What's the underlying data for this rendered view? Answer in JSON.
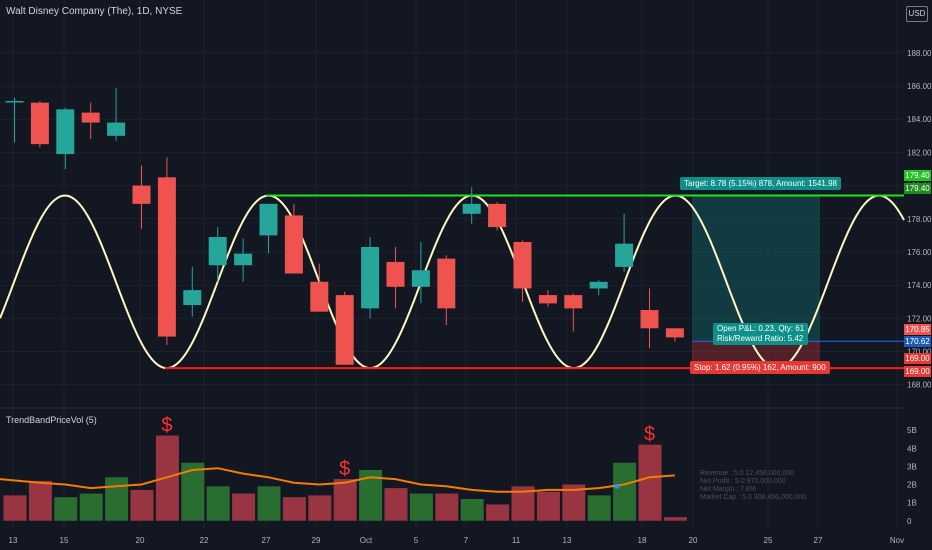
{
  "header": {
    "symbol_title": "Walt Disney Company (The), 1D, NYSE",
    "currency": "USD"
  },
  "indicator": {
    "title": "TrendBandPriceVol (5)",
    "stats": [
      "Revenue : 5.0 12,456,000,000",
      "Net Profit : 5.0 970,000,000",
      "Net Margin : 7.8%",
      "Market Cap : 5.0 308,456,000,000"
    ]
  },
  "position": {
    "target_label": "Target: 8.78 (5.15%) 878, Amount: 1541.98",
    "stop_label": "Stop: 1.62 (0.95%) 162, Amount: 900",
    "pnl_line1": "Open P&L: 0.23, Qty: 61",
    "pnl_line2": "Risk/Reward Ratio: 5.42",
    "target_price": 179.4,
    "entry_price": 170.62,
    "stop_price": 169.0,
    "last_price": 170.85,
    "target_tag_top": "179.40",
    "target_tag_bottom": "179.40",
    "last_tag": "170.85",
    "entry_tag": "170.62",
    "stop_tag_top": "169.00",
    "stop_tag_bottom": "169.00"
  },
  "colors": {
    "up": "#26a69a",
    "down": "#ef5350",
    "sine": "#fff8c4",
    "target_line": "#22e022",
    "stop_line": "#ff1a1a",
    "vol_up": "#2e7d32",
    "vol_down": "#b23a48",
    "vol_ma": "#f57c00",
    "signal": "#ff3030"
  },
  "chart_data": {
    "type": "candlestick",
    "price_axis": {
      "range": [
        167.8,
        189.5
      ],
      "ticks": [
        "188.00",
        "186.00",
        "184.00",
        "182.00",
        "180.00",
        "178.00",
        "176.00",
        "174.00",
        "172.00",
        "170.00",
        "168.00"
      ]
    },
    "x_labels": [
      "13",
      "15",
      "20",
      "22",
      "27",
      "29",
      "Oct",
      "5",
      "7",
      "11",
      "13",
      "18",
      "20",
      "25",
      "27",
      "Nov"
    ],
    "candles": [
      {
        "o": 185.1,
        "h": 185.3,
        "l": 182.6,
        "c": 185.1
      },
      {
        "o": 185.0,
        "h": 185.1,
        "l": 182.3,
        "c": 182.5
      },
      {
        "o": 181.9,
        "h": 184.7,
        "l": 181.0,
        "c": 184.6
      },
      {
        "o": 184.4,
        "h": 185.0,
        "l": 182.8,
        "c": 183.8
      },
      {
        "o": 183.0,
        "h": 185.9,
        "l": 182.7,
        "c": 183.8
      },
      {
        "o": 180.0,
        "h": 181.2,
        "l": 177.4,
        "c": 178.9
      },
      {
        "o": 180.5,
        "h": 181.7,
        "l": 170.4,
        "c": 170.9
      },
      {
        "o": 172.8,
        "h": 175.1,
        "l": 172.1,
        "c": 173.7
      },
      {
        "o": 175.2,
        "h": 177.5,
        "l": 174.2,
        "c": 176.9
      },
      {
        "o": 175.2,
        "h": 176.8,
        "l": 174.2,
        "c": 175.9
      },
      {
        "o": 177.0,
        "h": 178.9,
        "l": 175.9,
        "c": 178.9
      },
      {
        "o": 178.2,
        "h": 178.9,
        "l": 174.7,
        "c": 174.7
      },
      {
        "o": 174.2,
        "h": 175.3,
        "l": 172.4,
        "c": 172.4
      },
      {
        "o": 173.4,
        "h": 173.6,
        "l": 169.2,
        "c": 169.2
      },
      {
        "o": 172.6,
        "h": 176.9,
        "l": 172.0,
        "c": 176.3
      },
      {
        "o": 175.4,
        "h": 176.3,
        "l": 172.6,
        "c": 173.9
      },
      {
        "o": 173.9,
        "h": 176.6,
        "l": 172.9,
        "c": 174.9
      },
      {
        "o": 175.6,
        "h": 175.8,
        "l": 171.6,
        "c": 172.6
      },
      {
        "o": 178.3,
        "h": 179.9,
        "l": 177.7,
        "c": 178.9
      },
      {
        "o": 178.9,
        "h": 179.0,
        "l": 177.3,
        "c": 177.5
      },
      {
        "o": 176.6,
        "h": 176.7,
        "l": 173.0,
        "c": 173.8
      },
      {
        "o": 173.4,
        "h": 173.7,
        "l": 172.7,
        "c": 172.9
      },
      {
        "o": 173.4,
        "h": 173.5,
        "l": 171.2,
        "c": 172.6
      },
      {
        "o": 173.8,
        "h": 174.3,
        "l": 173.4,
        "c": 174.2
      },
      {
        "o": 175.1,
        "h": 178.3,
        "l": 174.8,
        "c": 176.5
      },
      {
        "o": 172.5,
        "h": 173.8,
        "l": 170.2,
        "c": 171.4
      },
      {
        "o": 171.4,
        "h": 171.4,
        "l": 170.6,
        "c": 170.85
      }
    ],
    "volume": {
      "axis_range": [
        -4,
        60
      ],
      "ticks": [
        "5B",
        "4B",
        "3B",
        "2B",
        "1B",
        "0"
      ],
      "bars": [
        {
          "v": 14,
          "up": false
        },
        {
          "v": 22,
          "up": false
        },
        {
          "v": 13,
          "up": true
        },
        {
          "v": 15,
          "up": true
        },
        {
          "v": 24,
          "up": true
        },
        {
          "v": 17,
          "up": false
        },
        {
          "v": 47,
          "up": false
        },
        {
          "v": 32,
          "up": true
        },
        {
          "v": 19,
          "up": true
        },
        {
          "v": 15,
          "up": false
        },
        {
          "v": 19,
          "up": true
        },
        {
          "v": 13,
          "up": false
        },
        {
          "v": 14,
          "up": false
        },
        {
          "v": 23,
          "up": false
        },
        {
          "v": 28,
          "up": true
        },
        {
          "v": 18,
          "up": false
        },
        {
          "v": 15,
          "up": true
        },
        {
          "v": 15,
          "up": false
        },
        {
          "v": 12,
          "up": true
        },
        {
          "v": 9,
          "up": false
        },
        {
          "v": 19,
          "up": false
        },
        {
          "v": 16,
          "up": false
        },
        {
          "v": 20,
          "up": false
        },
        {
          "v": 14,
          "up": true
        },
        {
          "v": 32,
          "up": true
        },
        {
          "v": 42,
          "up": false
        },
        {
          "v": 2,
          "up": false
        }
      ],
      "ma": [
        23,
        21,
        20,
        18,
        19,
        20,
        24,
        28,
        29,
        26,
        24,
        21,
        20,
        21,
        24,
        23,
        20,
        19,
        17,
        16,
        16,
        17,
        17,
        18,
        20,
        24,
        25
      ],
      "signals": [
        6,
        13,
        25
      ],
      "signal_symbol": "$"
    }
  }
}
